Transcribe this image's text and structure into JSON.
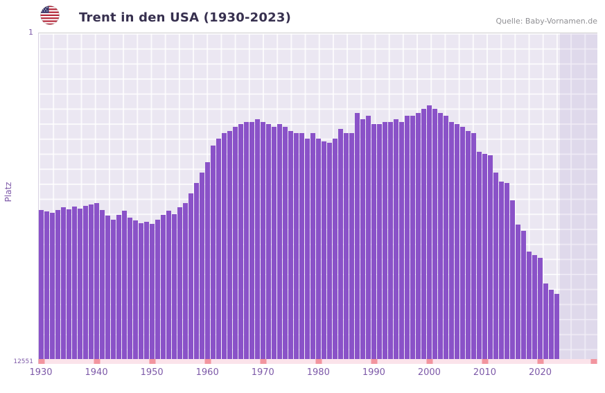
{
  "header": {
    "title": "Trent in den USA (1930-2023)",
    "source": "Quelle: Baby-Vornamen.de",
    "flag_icon": "us-flag-icon"
  },
  "colors": {
    "bar": "#8a52c8",
    "plot_background": "#ebe7f2",
    "tick_label": "#7d59a8",
    "title": "#37304f",
    "baseline_strip": "#fbe3ea",
    "decade_mark": "#f2959f",
    "future_overlay": "rgba(150,120,190,0.13)"
  },
  "chart_data": {
    "type": "bar",
    "title": "Trent in den USA (1930-2023)",
    "xlabel": "",
    "ylabel": "Platz",
    "legend": "none",
    "grid": true,
    "y_axis": {
      "top_label": "1",
      "bottom_label": "12551",
      "min": 1,
      "max": 12551,
      "scale": "log",
      "inverted": true,
      "note": "rank 1 at top; taller bar = better rank"
    },
    "x_domain": [
      1930,
      2030.8
    ],
    "x_ticks": [
      1930,
      1940,
      1950,
      1960,
      1970,
      1980,
      1990,
      2000,
      2010,
      2020
    ],
    "strip_marks": [
      1930,
      1940,
      1950,
      1960,
      1970,
      1980,
      1990,
      2000,
      2010,
      2020,
      2030
    ],
    "years": [
      1930,
      1931,
      1932,
      1933,
      1934,
      1935,
      1936,
      1937,
      1938,
      1939,
      1940,
      1941,
      1942,
      1943,
      1944,
      1945,
      1946,
      1947,
      1948,
      1949,
      1950,
      1951,
      1952,
      1953,
      1954,
      1955,
      1956,
      1957,
      1958,
      1959,
      1960,
      1961,
      1962,
      1963,
      1964,
      1965,
      1966,
      1967,
      1968,
      1969,
      1970,
      1971,
      1972,
      1973,
      1974,
      1975,
      1976,
      1977,
      1978,
      1979,
      1980,
      1981,
      1982,
      1983,
      1984,
      1985,
      1986,
      1987,
      1988,
      1989,
      1990,
      1991,
      1992,
      1993,
      1994,
      1995,
      1996,
      1997,
      1998,
      1999,
      2000,
      2001,
      2002,
      2003,
      2004,
      2005,
      2006,
      2007,
      2008,
      2009,
      2010,
      2011,
      2012,
      2013,
      2014,
      2015,
      2016,
      2017,
      2018,
      2019,
      2020,
      2021,
      2022,
      2023
    ],
    "ranks": [
      167,
      175,
      182,
      167,
      154,
      164,
      151,
      161,
      148,
      142,
      137,
      167,
      196,
      221,
      192,
      171,
      208,
      226,
      245,
      235,
      250,
      221,
      192,
      171,
      187,
      154,
      137,
      104,
      77,
      57,
      42,
      26,
      21,
      18,
      17,
      15,
      14,
      13,
      13,
      12,
      13,
      14,
      15,
      14,
      15,
      17,
      18,
      18,
      21,
      18,
      21,
      23,
      24,
      21,
      16,
      18,
      18,
      10,
      12,
      11,
      14,
      14,
      13,
      13,
      12,
      13,
      11,
      11,
      10,
      9,
      8,
      9,
      10,
      11,
      13,
      14,
      15,
      17,
      18,
      31,
      33,
      34,
      57,
      74,
      77,
      127,
      254,
      306,
      563,
      614,
      670,
      1397,
      1701,
      1886
    ]
  }
}
